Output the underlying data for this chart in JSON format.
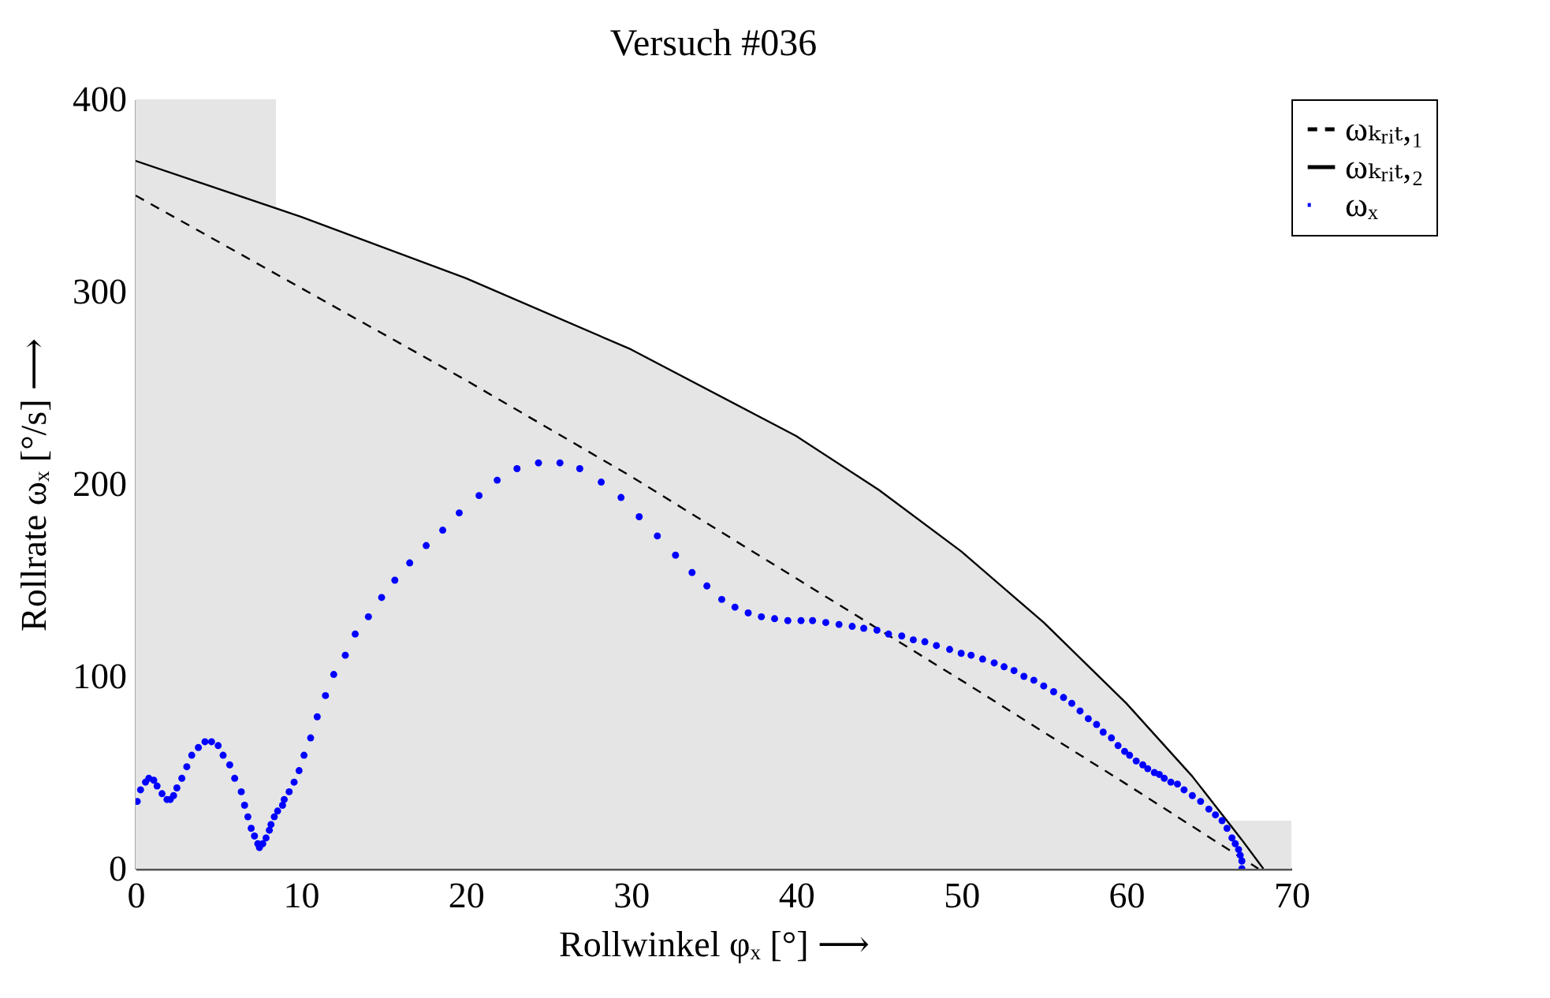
{
  "chart_data": {
    "type": "line",
    "title": "Versuch #036",
    "xlabel": "Rollwinkel φₓ [°] ⟶",
    "ylabel": "Rollrate ωₓ [°/s] ⟶",
    "xlim": [
      0,
      70
    ],
    "xticks": [
      0,
      10,
      20,
      30,
      40,
      50,
      60,
      70
    ],
    "ylim": [
      0,
      400
    ],
    "yticks": [
      0,
      100,
      200,
      300,
      400
    ],
    "grid": false,
    "legend": "top right",
    "series": [
      {
        "type": "area",
        "color": "#e5e5e5",
        "x": [
          0,
          8.5,
          8.5,
          10,
          20,
          30,
          40,
          45,
          50,
          55,
          60,
          64,
          66.1,
          70
        ],
        "values": [
          400,
          400,
          344,
          339,
          307,
          270,
          225,
          197,
          165,
          128,
          86,
          48,
          25,
          25
        ]
      },
      {
        "name": "ωₖᵣᵢₜ,₁",
        "line_style": "dashed",
        "color": "#000000",
        "x": [
          0,
          10,
          20,
          30,
          40,
          50,
          60,
          68
        ],
        "values": [
          350,
          302,
          254,
          204,
          151,
          98,
          44,
          0
        ]
      },
      {
        "name": "ωₖᵣᵢₜ,₂",
        "line_style": "solid",
        "color": "#000000",
        "x": [
          0,
          10,
          20,
          30,
          40,
          45,
          50,
          55,
          60,
          64,
          66,
          67,
          68.3
        ],
        "values": [
          368,
          339,
          307,
          270,
          225,
          197,
          165,
          128,
          86,
          48,
          26,
          15,
          0
        ]
      },
      {
        "name": "ωₓ",
        "type": "scatter",
        "marker": "circle",
        "color": "#0000ff",
        "x": [
          0.1,
          0.3,
          0.6,
          0.8,
          1.1,
          1.3,
          1.6,
          1.9,
          2.1,
          2.3,
          2.5,
          2.8,
          3.1,
          3.4,
          3.8,
          4.2,
          4.6,
          5.0,
          5.3,
          5.7,
          6.0,
          6.4,
          6.6,
          6.8,
          7.0,
          7.2,
          7.4,
          7.5,
          7.7,
          7.9,
          8.1,
          8.2,
          8.4,
          8.6,
          8.9,
          9.0,
          9.3,
          9.6,
          9.9,
          10.2,
          10.6,
          11.0,
          11.5,
          12.0,
          12.7,
          13.3,
          14.1,
          14.9,
          15.7,
          16.6,
          17.6,
          18.6,
          19.6,
          20.8,
          21.9,
          23.1,
          24.4,
          25.7,
          26.9,
          28.2,
          29.4,
          30.5,
          31.6,
          32.7,
          33.7,
          34.6,
          35.5,
          36.3,
          37.1,
          37.9,
          38.7,
          39.5,
          40.3,
          41.0,
          41.8,
          42.6,
          43.4,
          44.1,
          44.9,
          45.6,
          46.4,
          47.1,
          47.8,
          48.5,
          49.3,
          50.0,
          50.6,
          51.3,
          52.0,
          52.6,
          53.2,
          53.8,
          54.4,
          55.0,
          55.6,
          56.2,
          56.7,
          57.2,
          57.7,
          58.2,
          58.6,
          59.1,
          59.5,
          59.9,
          60.2,
          60.6,
          61.0,
          61.3,
          61.7,
          62.0,
          62.3,
          62.7,
          63.1,
          63.5,
          64.0,
          64.5,
          65.0,
          65.4,
          65.8,
          66.1,
          66.4,
          66.6,
          66.8,
          66.9,
          67.0,
          67.0
        ],
        "values": [
          35,
          41,
          45,
          47,
          46,
          43,
          39,
          36,
          36,
          38,
          42,
          47,
          53,
          59,
          63,
          66,
          66,
          64,
          59,
          54,
          47,
          40,
          33,
          27,
          21,
          17,
          13,
          11,
          13,
          16,
          20,
          23,
          27,
          30,
          33,
          36,
          40,
          45,
          51,
          59,
          68,
          79,
          90,
          101,
          111,
          122,
          131,
          141,
          150,
          159,
          168,
          176,
          185,
          194,
          202,
          208,
          211,
          211,
          208,
          201,
          193,
          183,
          173,
          163,
          154,
          147,
          140,
          136,
          133,
          131,
          130,
          129,
          129,
          129,
          128,
          127,
          126,
          125,
          124,
          122,
          121,
          119,
          118,
          116,
          114,
          112,
          111,
          109,
          107,
          105,
          103,
          100,
          98,
          95,
          92,
          89,
          86,
          82,
          78,
          75,
          71,
          68,
          64,
          61,
          59,
          56,
          54,
          52,
          50,
          49,
          47,
          45,
          44,
          41,
          38,
          35,
          31,
          28,
          25,
          21,
          16,
          13,
          10,
          7,
          4,
          0
        ]
      }
    ]
  }
}
